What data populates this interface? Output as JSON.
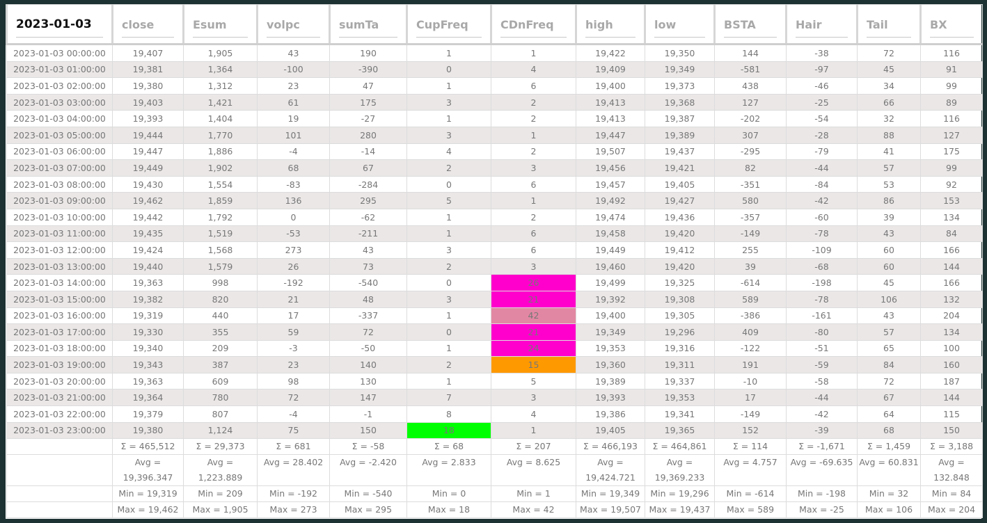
{
  "title": "2023-01-03",
  "columns": [
    "close",
    "Esum",
    "volpc",
    "sumTa",
    "CupFreq",
    "CDnFreq",
    "high",
    "low",
    "BSTA",
    "Hair",
    "Tail",
    "BX"
  ],
  "highlight_colors": {
    "magenta": "#ff00cc",
    "pink": "#e287a3",
    "orange": "#ff9900",
    "green": "#00ff00"
  },
  "rows": [
    [
      "2023-01-03 00:00:00",
      "19,407",
      "1,905",
      "43",
      "190",
      "1",
      "1",
      "19,422",
      "19,350",
      "144",
      "-38",
      "72",
      "116"
    ],
    [
      "2023-01-03 01:00:00",
      "19,381",
      "1,364",
      "-100",
      "-390",
      "0",
      "4",
      "19,409",
      "19,349",
      "-581",
      "-97",
      "45",
      "91"
    ],
    [
      "2023-01-03 02:00:00",
      "19,380",
      "1,312",
      "23",
      "47",
      "1",
      "6",
      "19,400",
      "19,373",
      "438",
      "-46",
      "34",
      "99"
    ],
    [
      "2023-01-03 03:00:00",
      "19,403",
      "1,421",
      "61",
      "175",
      "3",
      "2",
      "19,413",
      "19,368",
      "127",
      "-25",
      "66",
      "89"
    ],
    [
      "2023-01-03 04:00:00",
      "19,393",
      "1,404",
      "19",
      "-27",
      "1",
      "2",
      "19,413",
      "19,387",
      "-202",
      "-54",
      "32",
      "116"
    ],
    [
      "2023-01-03 05:00:00",
      "19,444",
      "1,770",
      "101",
      "280",
      "3",
      "1",
      "19,447",
      "19,389",
      "307",
      "-28",
      "88",
      "127"
    ],
    [
      "2023-01-03 06:00:00",
      "19,447",
      "1,886",
      "-4",
      "-14",
      "4",
      "2",
      "19,507",
      "19,437",
      "-295",
      "-79",
      "41",
      "175"
    ],
    [
      "2023-01-03 07:00:00",
      "19,449",
      "1,902",
      "68",
      "67",
      "2",
      "3",
      "19,456",
      "19,421",
      "82",
      "-44",
      "57",
      "99"
    ],
    [
      "2023-01-03 08:00:00",
      "19,430",
      "1,554",
      "-83",
      "-284",
      "0",
      "6",
      "19,457",
      "19,405",
      "-351",
      "-84",
      "53",
      "92"
    ],
    [
      "2023-01-03 09:00:00",
      "19,462",
      "1,859",
      "136",
      "295",
      "5",
      "1",
      "19,492",
      "19,427",
      "580",
      "-42",
      "86",
      "153"
    ],
    [
      "2023-01-03 10:00:00",
      "19,442",
      "1,792",
      "0",
      "-62",
      "1",
      "2",
      "19,474",
      "19,436",
      "-357",
      "-60",
      "39",
      "134"
    ],
    [
      "2023-01-03 11:00:00",
      "19,435",
      "1,519",
      "-53",
      "-211",
      "1",
      "6",
      "19,458",
      "19,420",
      "-149",
      "-78",
      "43",
      "84"
    ],
    [
      "2023-01-03 12:00:00",
      "19,424",
      "1,568",
      "273",
      "43",
      "3",
      "6",
      "19,449",
      "19,412",
      "255",
      "-109",
      "60",
      "166"
    ],
    [
      "2023-01-03 13:00:00",
      "19,440",
      "1,579",
      "26",
      "73",
      "2",
      "3",
      "19,460",
      "19,420",
      "39",
      "-68",
      "60",
      "144"
    ],
    [
      "2023-01-03 14:00:00",
      "19,363",
      "998",
      "-192",
      "-540",
      "0",
      "26",
      "19,499",
      "19,325",
      "-614",
      "-198",
      "45",
      "166"
    ],
    [
      "2023-01-03 15:00:00",
      "19,382",
      "820",
      "21",
      "48",
      "3",
      "21",
      "19,392",
      "19,308",
      "589",
      "-78",
      "106",
      "132"
    ],
    [
      "2023-01-03 16:00:00",
      "19,319",
      "440",
      "17",
      "-337",
      "1",
      "42",
      "19,400",
      "19,305",
      "-386",
      "-161",
      "43",
      "204"
    ],
    [
      "2023-01-03 17:00:00",
      "19,330",
      "355",
      "59",
      "72",
      "0",
      "21",
      "19,349",
      "19,296",
      "409",
      "-80",
      "57",
      "134"
    ],
    [
      "2023-01-03 18:00:00",
      "19,340",
      "209",
      "-3",
      "-50",
      "1",
      "24",
      "19,353",
      "19,316",
      "-122",
      "-51",
      "65",
      "100"
    ],
    [
      "2023-01-03 19:00:00",
      "19,343",
      "387",
      "23",
      "140",
      "2",
      "15",
      "19,360",
      "19,311",
      "191",
      "-59",
      "84",
      "160"
    ],
    [
      "2023-01-03 20:00:00",
      "19,363",
      "609",
      "98",
      "130",
      "1",
      "5",
      "19,389",
      "19,337",
      "-10",
      "-58",
      "72",
      "187"
    ],
    [
      "2023-01-03 21:00:00",
      "19,364",
      "780",
      "72",
      "147",
      "7",
      "3",
      "19,393",
      "19,353",
      "17",
      "-44",
      "67",
      "144"
    ],
    [
      "2023-01-03 22:00:00",
      "19,379",
      "807",
      "-4",
      "-1",
      "8",
      "4",
      "19,386",
      "19,341",
      "-149",
      "-42",
      "64",
      "115"
    ],
    [
      "2023-01-03 23:00:00",
      "19,380",
      "1,124",
      "75",
      "150",
      "18",
      "1",
      "19,405",
      "19,365",
      "152",
      "-39",
      "68",
      "150"
    ]
  ],
  "highlights": [
    {
      "row": 14,
      "col": 6,
      "color": "magenta"
    },
    {
      "row": 15,
      "col": 6,
      "color": "magenta"
    },
    {
      "row": 16,
      "col": 6,
      "color": "pink"
    },
    {
      "row": 17,
      "col": 6,
      "color": "magenta"
    },
    {
      "row": 18,
      "col": 6,
      "color": "magenta"
    },
    {
      "row": 19,
      "col": 6,
      "color": "orange"
    },
    {
      "row": 23,
      "col": 5,
      "color": "green"
    }
  ],
  "footer": {
    "sum": [
      "Σ = 465,512",
      "Σ = 29,373",
      "Σ = 681",
      "Σ = -58",
      "Σ = 68",
      "Σ = 207",
      "Σ = 466,193",
      "Σ = 464,861",
      "Σ = 114",
      "Σ = -1,671",
      "Σ = 1,459",
      "Σ = 3,188"
    ],
    "avg": [
      "Avg = 19,396.347",
      "Avg = 1,223.889",
      "Avg = 28.402",
      "Avg = -2.420",
      "Avg = 2.833",
      "Avg = 8.625",
      "Avg = 19,424.721",
      "Avg = 19,369.233",
      "Avg = 4.757",
      "Avg = -69.635",
      "Avg = 60.831",
      "Avg = 132.848"
    ],
    "min": [
      "Min = 19,319",
      "Min = 209",
      "Min = -192",
      "Min = -540",
      "Min = 0",
      "Min = 1",
      "Min = 19,349",
      "Min = 19,296",
      "Min = -614",
      "Min = -198",
      "Min = 32",
      "Min = 84"
    ],
    "max": [
      "Max = 19,462",
      "Max = 1,905",
      "Max = 273",
      "Max = 295",
      "Max = 18",
      "Max = 42",
      "Max = 19,507",
      "Max = 19,437",
      "Max = 589",
      "Max = -25",
      "Max = 106",
      "Max = 204"
    ]
  }
}
